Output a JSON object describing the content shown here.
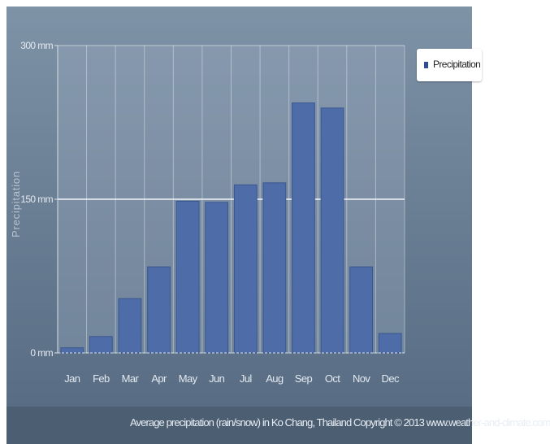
{
  "chart_data": {
    "type": "bar",
    "categories": [
      "Jan",
      "Feb",
      "Mar",
      "Apr",
      "May",
      "Jun",
      "Jul",
      "Aug",
      "Sep",
      "Oct",
      "Nov",
      "Dec"
    ],
    "series": [
      {
        "name": "Precipitation",
        "values": [
          5,
          16,
          53,
          84,
          148,
          147,
          164,
          166,
          244,
          239,
          84,
          19
        ]
      }
    ],
    "title": "",
    "ylabel": "Precipitation",
    "xlabel": "",
    "ylim": [
      0,
      300
    ],
    "yticks": [
      0,
      150,
      300
    ],
    "ytick_labels": [
      "0 mm",
      "150 mm",
      "300 mm"
    ],
    "grid": true,
    "legend_position": "top-right",
    "bar_color": "#4e6da8",
    "footer": "Average precipitation (rain/snow) in Ko Chang, Thailand   Copyright © 2013 www.weather-and-climate.com"
  }
}
